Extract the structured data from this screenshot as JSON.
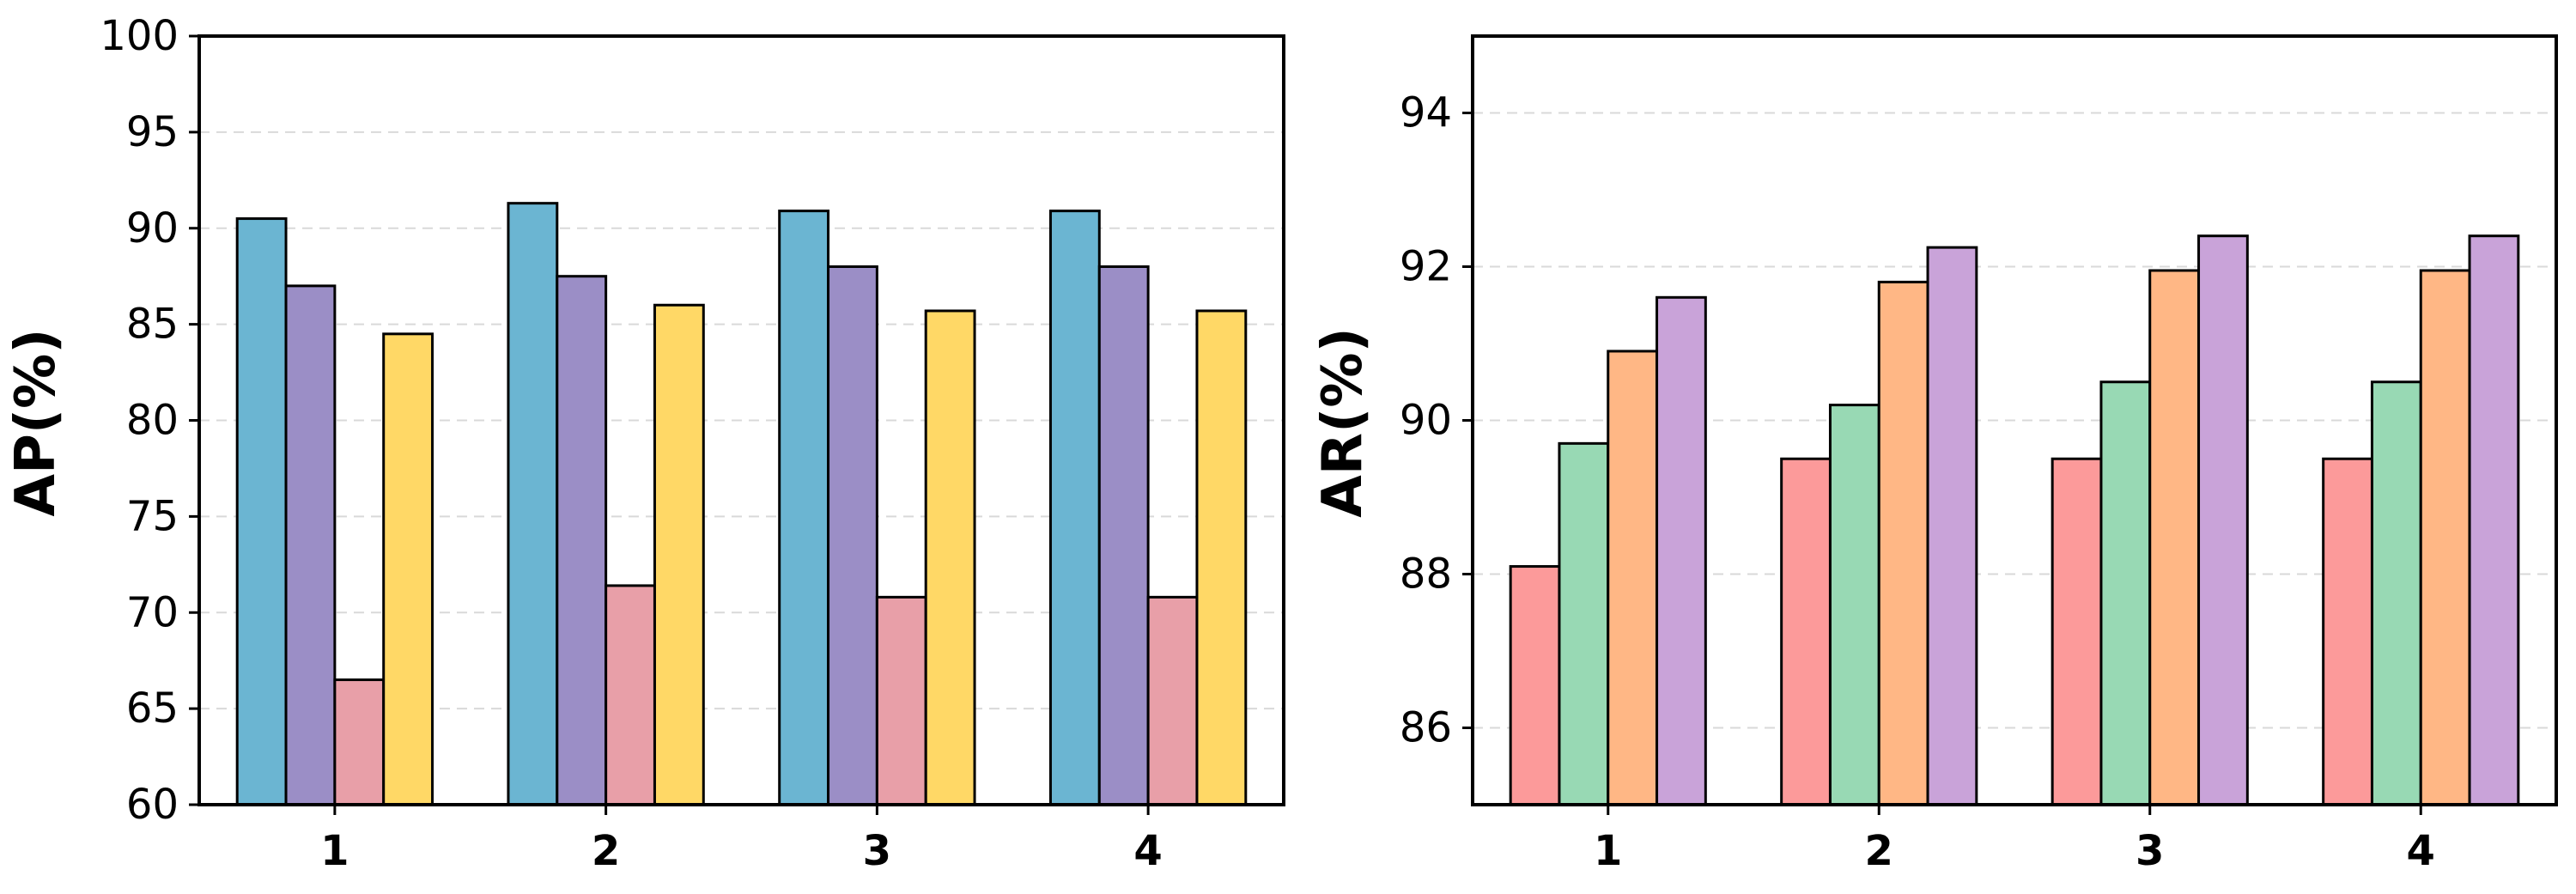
{
  "chart_data": [
    {
      "type": "bar",
      "title": "",
      "xlabel": "",
      "ylabel": "AP(%)",
      "categories": [
        "1",
        "2",
        "3",
        "4"
      ],
      "ylim": [
        60,
        100
      ],
      "yticks": [
        "60",
        "65",
        "70",
        "75",
        "80",
        "85",
        "90",
        "95",
        "100"
      ],
      "grid": "horizontal dashed",
      "colors": [
        "#6bb5d2",
        "#9b8ec6",
        "#e89fa8",
        "#ffd866"
      ],
      "series": [
        {
          "values": [
            90.5,
            91.3,
            90.9,
            90.9
          ]
        },
        {
          "values": [
            87.0,
            87.5,
            88.0,
            88.0
          ]
        },
        {
          "values": [
            66.5,
            71.4,
            70.8,
            70.8
          ]
        },
        {
          "values": [
            84.5,
            86.0,
            85.7,
            85.7
          ]
        }
      ]
    },
    {
      "type": "bar",
      "title": "",
      "xlabel": "",
      "ylabel": "AR(%)",
      "categories": [
        "1",
        "2",
        "3",
        "4"
      ],
      "ylim": [
        85,
        95
      ],
      "yticks": [
        "86",
        "88",
        "90",
        "92",
        "94"
      ],
      "grid": "horizontal dashed",
      "colors": [
        "#fc9a9a",
        "#98d9b4",
        "#ffb785",
        "#c9a3d9"
      ],
      "series": [
        {
          "values": [
            88.1,
            89.5,
            89.5,
            89.5
          ]
        },
        {
          "values": [
            89.7,
            90.2,
            90.5,
            90.5
          ]
        },
        {
          "values": [
            90.9,
            91.8,
            91.95,
            91.95
          ]
        },
        {
          "values": [
            91.6,
            92.25,
            92.4,
            92.4
          ]
        }
      ]
    }
  ]
}
